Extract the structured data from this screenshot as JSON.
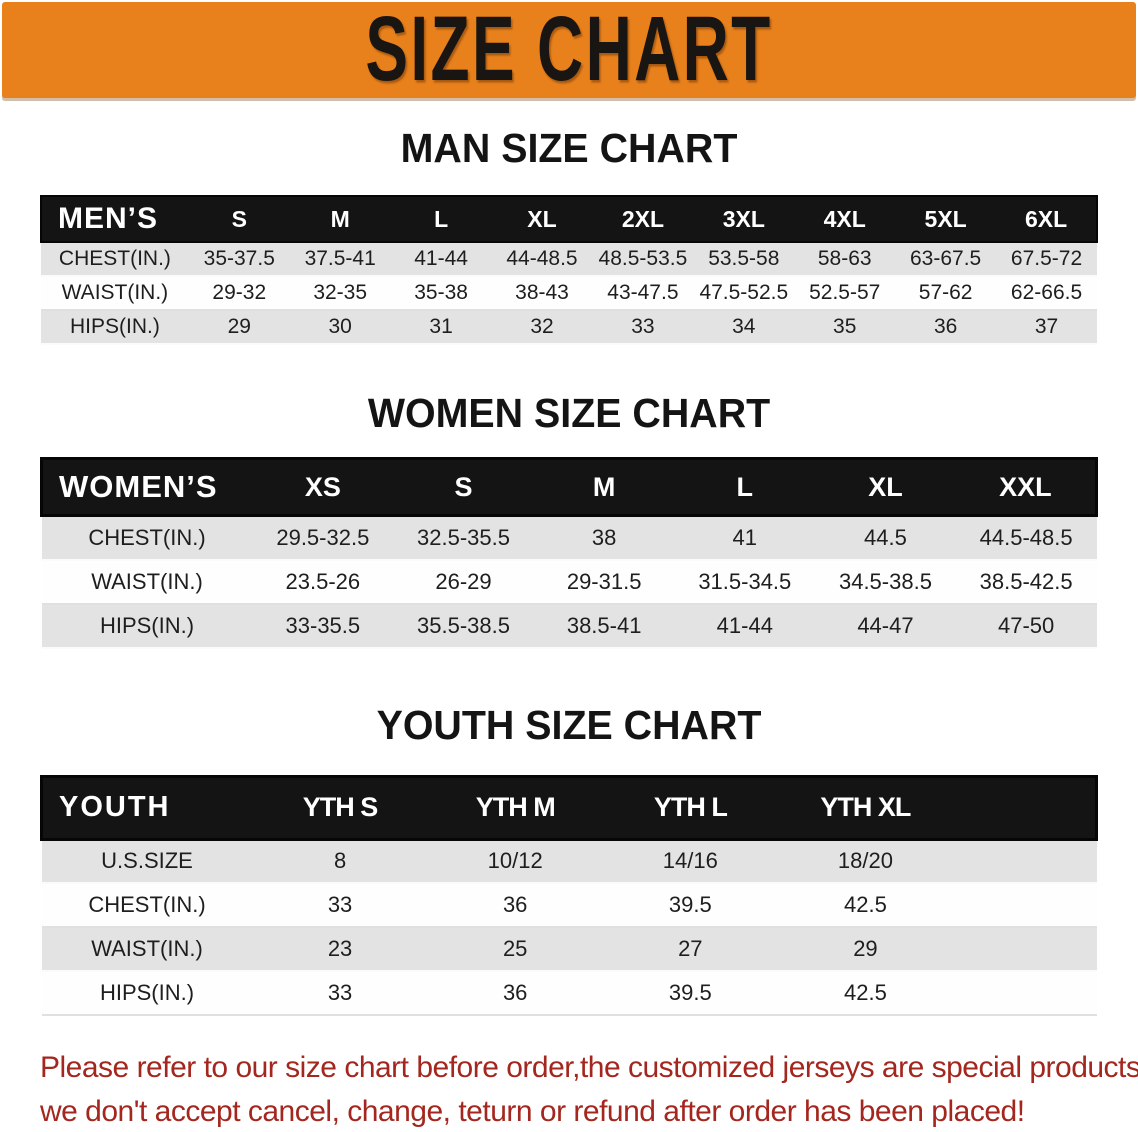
{
  "banner": {
    "title": "SIZE CHART",
    "background_color": "#e8811c",
    "text_color": "#181512"
  },
  "colors": {
    "header_bar": "#151414",
    "stripe_gray": "#e3e3e3",
    "stripe_white": "#fefefe",
    "footnote_red": "#a3271e"
  },
  "sections": {
    "men": {
      "title": "MAN SIZE CHART",
      "table": {
        "label": "MEN’S",
        "columns": [
          "S",
          "M",
          "L",
          "XL",
          "2XL",
          "3XL",
          "4XL",
          "5XL",
          "6XL"
        ],
        "rows": [
          {
            "label": "CHEST(IN.)",
            "values": [
              "35-37.5",
              "37.5-41",
              "41-44",
              "44-48.5",
              "48.5-53.5",
              "53.5-58",
              "58-63",
              "63-67.5",
              "67.5-72"
            ]
          },
          {
            "label": "WAIST(IN.)",
            "values": [
              "29-32",
              "32-35",
              "35-38",
              "38-43",
              "43-47.5",
              "47.5-52.5",
              "52.5-57",
              "57-62",
              "62-66.5"
            ]
          },
          {
            "label": "HIPS(IN.)",
            "values": [
              "29",
              "30",
              "31",
              "32",
              "33",
              "34",
              "35",
              "36",
              "37"
            ]
          }
        ]
      }
    },
    "women": {
      "title": "WOMEN SIZE CHART",
      "table": {
        "label": "WOMEN’S",
        "columns": [
          "XS",
          "S",
          "M",
          "L",
          "XL",
          "XXL"
        ],
        "rows": [
          {
            "label": "CHEST(IN.)",
            "values": [
              "29.5-32.5",
              "32.5-35.5",
              "38",
              "41",
              "44.5",
              "44.5-48.5"
            ]
          },
          {
            "label": "WAIST(IN.)",
            "values": [
              "23.5-26",
              "26-29",
              "29-31.5",
              "31.5-34.5",
              "34.5-38.5",
              "38.5-42.5"
            ]
          },
          {
            "label": "HIPS(IN.)",
            "values": [
              "33-35.5",
              "35.5-38.5",
              "38.5-41",
              "41-44",
              "44-47",
              "47-50"
            ]
          }
        ]
      }
    },
    "youth": {
      "title": "YOUTH SIZE CHART",
      "table": {
        "label": "YOUTH",
        "trailing_spacer": true,
        "columns": [
          "YTH S",
          "YTH M",
          "YTH L",
          "YTH XL"
        ],
        "rows": [
          {
            "label": "U.S.SIZE",
            "values": [
              "8",
              "10/12",
              "14/16",
              "18/20"
            ]
          },
          {
            "label": "CHEST(IN.)",
            "values": [
              "33",
              "36",
              "39.5",
              "42.5"
            ]
          },
          {
            "label": "WAIST(IN.)",
            "values": [
              "23",
              "25",
              "27",
              "29"
            ]
          },
          {
            "label": "HIPS(IN.)",
            "values": [
              "33",
              "36",
              "39.5",
              "42.5"
            ]
          }
        ]
      }
    }
  },
  "footnote": {
    "line1": "Please refer to our size chart before order,the customized jerseys are special products,",
    "line2": "we don't accept cancel, change, teturn or refund after order has been placed!"
  }
}
